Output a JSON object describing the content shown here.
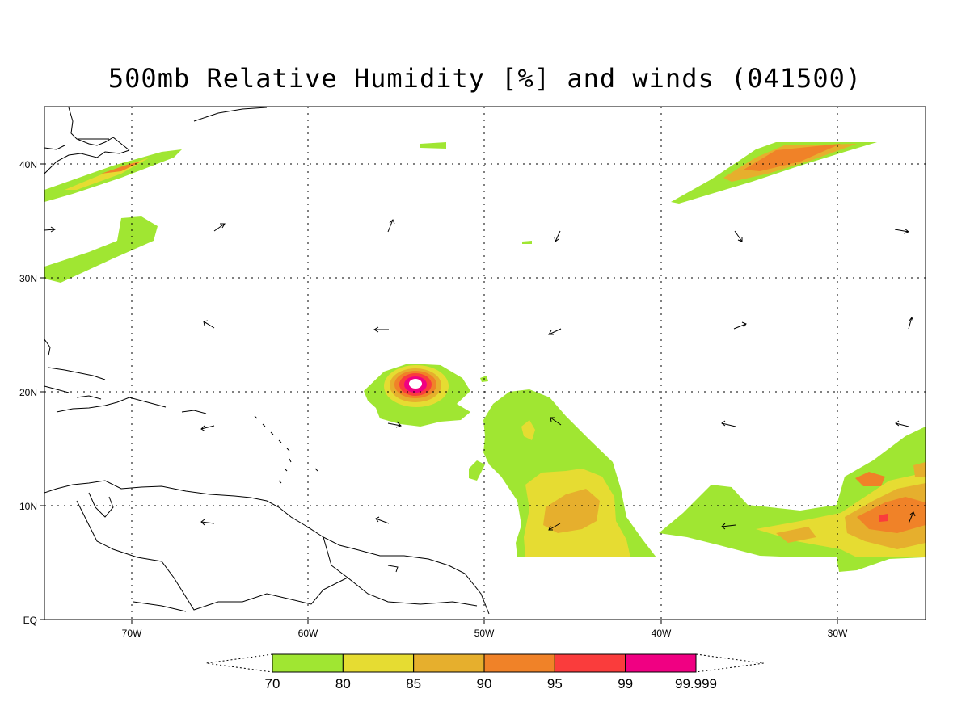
{
  "title": "500mb Relative Humidity [%] and winds (041500)",
  "lat_labels": [
    "40N",
    "30N",
    "20N",
    "10N",
    "EQ"
  ],
  "lon_labels": [
    "70W",
    "60W",
    "50W",
    "40W",
    "30W"
  ],
  "colorbar": {
    "labels": [
      "70",
      "80",
      "85",
      "90",
      "95",
      "99",
      "99.999"
    ],
    "colors": [
      "#a0e632",
      "#e6dc32",
      "#e6af2d",
      "#f08228",
      "#fa3c3c",
      "#f00082"
    ]
  },
  "map_extent": {
    "lon_range": [
      -75,
      -25
    ],
    "lat_range": [
      0,
      45
    ]
  }
}
